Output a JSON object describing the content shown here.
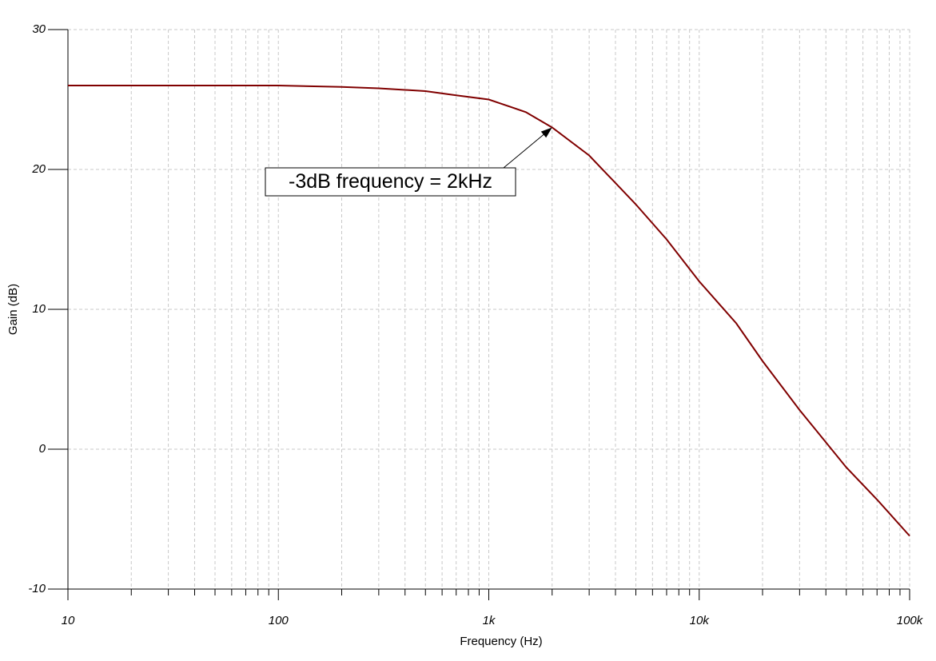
{
  "chart_data": {
    "type": "line",
    "x_label": "Frequency (Hz)",
    "y_label": "Gain (dB)",
    "xscale": "log",
    "xlim": [
      10,
      100000
    ],
    "xticks": [
      10,
      100,
      {
        "value": 1000,
        "label": "1k"
      },
      {
        "value": 10000,
        "label": "10k"
      },
      {
        "value": 100000,
        "label": "100k"
      }
    ],
    "xminor_ticks": [
      20,
      30,
      40,
      50,
      60,
      70,
      80,
      90,
      200,
      300,
      400,
      500,
      600,
      700,
      800,
      900,
      2000,
      3000,
      4000,
      5000,
      6000,
      7000,
      8000,
      9000,
      20000,
      30000,
      40000,
      50000,
      60000,
      70000,
      80000,
      90000
    ],
    "ylim": [
      -10,
      30
    ],
    "yticks": [
      -10,
      0,
      10,
      20,
      30
    ],
    "grid": true,
    "x": [
      10,
      20,
      50,
      100,
      200,
      300,
      500,
      700,
      1000,
      1500,
      2000,
      3000,
      5000,
      7000,
      10000,
      15000,
      20000,
      30000,
      50000,
      70000,
      100000
    ],
    "series": [
      {
        "color": "#800000",
        "values": [
          26.0,
          26.0,
          26.0,
          26.0,
          25.9,
          25.8,
          25.6,
          25.3,
          25.0,
          24.1,
          23.0,
          21.0,
          17.5,
          15.0,
          12.0,
          9.0,
          6.3,
          2.8,
          -1.3,
          -3.6,
          -6.2
        ]
      }
    ],
    "annotation": {
      "text": "-3dB frequency = 2kHz",
      "x": 2000,
      "y": 23.0
    }
  }
}
